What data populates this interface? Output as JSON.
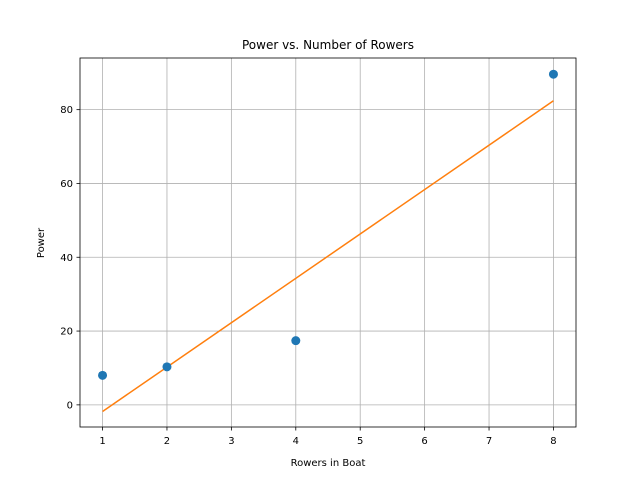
{
  "chart_data": {
    "type": "scatter",
    "title": "Power vs. Number of Rowers",
    "xlabel": "Rowers in Boat",
    "ylabel": "Power",
    "xlim": [
      0.65,
      8.35
    ],
    "ylim": [
      -6,
      94
    ],
    "xticks": [
      1,
      2,
      3,
      4,
      5,
      6,
      7,
      8
    ],
    "yticks": [
      0,
      20,
      40,
      60,
      80
    ],
    "grid": true,
    "series": [
      {
        "kind": "scatter",
        "color": "#1f77b4",
        "x": [
          1,
          2,
          4,
          8
        ],
        "y": [
          8,
          10.3,
          17.4,
          89.6
        ]
      },
      {
        "kind": "line",
        "color": "#ff7f0e",
        "x": [
          1,
          8
        ],
        "y": [
          -1.8,
          82.4
        ]
      }
    ]
  }
}
